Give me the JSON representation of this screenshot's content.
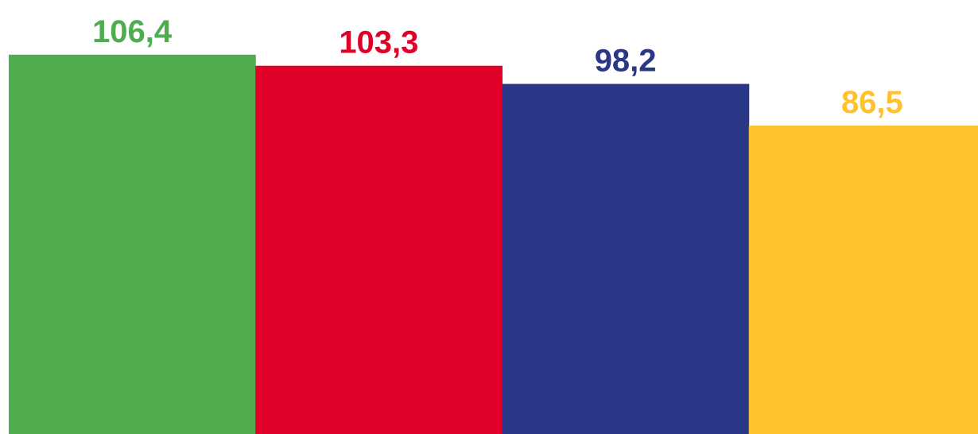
{
  "chart_data": {
    "type": "bar",
    "categories": [
      "",
      "",
      "",
      ""
    ],
    "values": [
      106.4,
      103.3,
      98.2,
      86.5
    ],
    "value_labels": [
      "106,4",
      "103,3",
      "98,2",
      "86,5"
    ],
    "colors": [
      "#4fad4f",
      "#e00028",
      "#2a3786",
      "#ffc22e"
    ],
    "title": "",
    "xlabel": "",
    "ylabel": "",
    "ylim": [
      0,
      115
    ],
    "grid": false,
    "legend": "none"
  }
}
